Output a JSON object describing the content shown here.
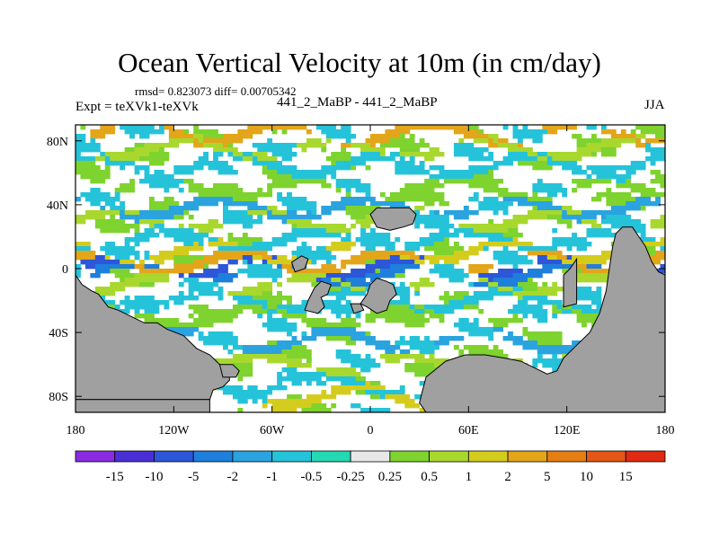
{
  "chart_data": {
    "type": "heatmap",
    "title": "Ocean Vertical Velocity at 10m (in cm/day)",
    "stats_line": "rmsd= 0.823073 diff= 0.00705342",
    "left_label": "Expt = teXVk1-teXVk",
    "center_label": "441_2_MaBP - 441_2_MaBP",
    "right_label": "JJA",
    "x_tick_labels": [
      "180",
      "120W",
      "60W",
      "0",
      "60E",
      "120E",
      "180"
    ],
    "x_tick_values": [
      -180,
      -120,
      -60,
      0,
      60,
      120,
      180
    ],
    "y_tick_labels": [
      "80N",
      "40N",
      "0",
      "40S",
      "80S"
    ],
    "y_tick_values": [
      80,
      40,
      0,
      -40,
      -80
    ],
    "xlim": [
      -180,
      180
    ],
    "ylim": [
      -90,
      90
    ],
    "colorbar_labels": [
      "-15",
      "-10",
      "-5",
      "-2",
      "-1",
      "-0.5",
      "-0.25",
      "0.25",
      "0.5",
      "1",
      "2",
      "5",
      "10",
      "15"
    ],
    "colorbar_colors": [
      "#8a2be2",
      "#4b2fd6",
      "#2d56d8",
      "#1e7fdc",
      "#2aa3df",
      "#25c3d9",
      "#25d8b4",
      "#e8e8e8",
      "#7ed32e",
      "#a8d82e",
      "#d4cc1d",
      "#e3a51a",
      "#e57f13",
      "#e35614",
      "#e02a12"
    ],
    "land_color": "#a0a0a0"
  }
}
